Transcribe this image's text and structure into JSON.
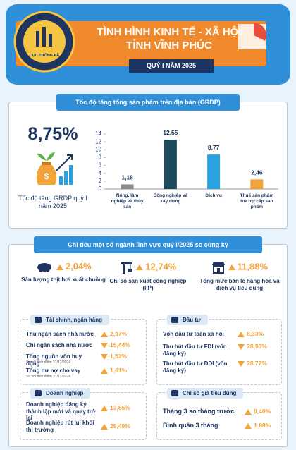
{
  "header": {
    "logo_text": "CỤC THỐNG KÊ",
    "title_line1": "TÌNH HÌNH KINH TẾ - XÃ HỘI",
    "title_line2": "TỈNH VĨNH PHÚC",
    "period": "QUÝ I NĂM 2025"
  },
  "grdp": {
    "title": "Tốc độ tăng tổng sản phẩm trên địa bàn (GRDP)",
    "headline_value": "8,75%",
    "headline_label": "Tốc độ tăng GRDP quý I năm 2025"
  },
  "chart_data": {
    "type": "bar",
    "categories": [
      "Nông, lâm nghiệp và thủy sản",
      "Công nghiệp và xây dựng",
      "Dịch vụ",
      "Thuế sản phẩm trừ trợ cấp sản phẩm"
    ],
    "values": [
      1.18,
      12.55,
      8.77,
      2.46
    ],
    "value_labels": [
      "1,18",
      "12,55",
      "8,77",
      "2,46"
    ],
    "colors": [
      "#8c8c8c",
      "#1e4a5e",
      "#29a3e0",
      "#f2a33a"
    ],
    "ylim": [
      0,
      14
    ],
    "yticks": [
      0,
      2,
      4,
      6,
      8,
      10,
      12,
      14
    ]
  },
  "sectors": {
    "title": "Chỉ tiêu một số ngành lĩnh vực quý I/2025 so cùng kỳ",
    "highlights": [
      {
        "value": "2,04%",
        "label": "Sản lượng thịt hơi xuất chuồng"
      },
      {
        "value": "12,74%",
        "label": "Chỉ số sản xuất công nghiệp (IIP)"
      },
      {
        "value": "11,88%",
        "label": "Tổng mức bán lẻ hàng hóa và dịch vụ tiêu dùng"
      }
    ],
    "panels": [
      {
        "title": "Tài chính, ngân hàng",
        "items": [
          {
            "label": "Thu ngân sách nhà nước",
            "value": "2,97%"
          },
          {
            "label": "Chi ngân sách nhà nước",
            "value": "15,44%"
          },
          {
            "label": "Tổng nguồn vốn huy động",
            "value": "1,52%",
            "note": "So với thời điểm 31/12/2024"
          },
          {
            "label": "Tổng dư nợ cho vay",
            "value": "1,61%",
            "note": "So với thời điểm 31/12/2024"
          }
        ]
      },
      {
        "title": "Đầu tư",
        "items": [
          {
            "label": "Vốn đầu tư toàn xã hội",
            "value": "8,33%"
          },
          {
            "label": "Thu hút đầu tư FDI (vốn đăng ký)",
            "value": "78,90%"
          },
          {
            "label": "Thu hút đầu tư DDI (vốn đăng ký)",
            "value": "78,77%"
          }
        ]
      },
      {
        "title": "Doanh nghiệp",
        "items": [
          {
            "label": "Doanh nghiệp đăng ký thành lập mới và quay trở lại",
            "value": "13,65%"
          },
          {
            "label": "Doanh nghiệp rút lui khỏi thị trường",
            "value": "29,49%"
          }
        ]
      },
      {
        "title": "Chỉ số giá tiêu dùng",
        "items": [
          {
            "label": "Tháng 3 so tháng trước",
            "value": "0,40%"
          },
          {
            "label": "Bình quân 3 tháng",
            "value": "1,88%"
          }
        ]
      }
    ]
  }
}
